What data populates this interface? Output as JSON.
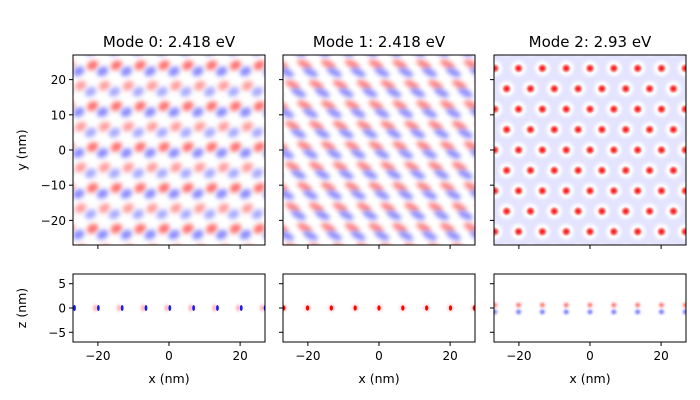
{
  "figure": {
    "ylabel_top": "y (nm)",
    "ylabel_bottom": "z (nm)",
    "xlabel": "x (nm)"
  },
  "chart_data": [
    {
      "type": "heatmap",
      "title": "Mode 0: 2.418 eV",
      "xlabel": "",
      "ylabel": "y (nm)",
      "xlim": [
        -27,
        27
      ],
      "ylim": [
        -27,
        27
      ],
      "xticks": [
        -20,
        0,
        20
      ],
      "yticks": [
        -20,
        -10,
        0,
        10,
        20
      ],
      "colormap": "bwr",
      "pattern": "dipole lobes, red/blue alternating on triangular lattice"
    },
    {
      "type": "heatmap",
      "title": "Mode 1: 2.418 eV",
      "xlabel": "",
      "ylabel": "",
      "xlim": [
        -27,
        27
      ],
      "ylim": [
        -27,
        27
      ],
      "xticks": [
        -20,
        0,
        20
      ],
      "yticks": [
        -20,
        -10,
        0,
        10,
        20
      ],
      "colormap": "bwr",
      "pattern": "diagonal red/blue stripes on triangular lattice"
    },
    {
      "type": "heatmap",
      "title": "Mode 2: 2.93 eV",
      "xlabel": "",
      "ylabel": "",
      "xlim": [
        -27,
        27
      ],
      "ylim": [
        -27,
        27
      ],
      "xticks": [
        -20,
        0,
        20
      ],
      "yticks": [
        -20,
        -10,
        0,
        10,
        20
      ],
      "colormap": "bwr",
      "pattern": "red spots on light blue background, triangular lattice"
    },
    {
      "type": "heatmap",
      "title": "",
      "xlabel": "x (nm)",
      "ylabel": "z (nm)",
      "xlim": [
        -27,
        27
      ],
      "ylim": [
        -7,
        7
      ],
      "xticks": [
        -20,
        0,
        20
      ],
      "yticks": [
        -5,
        0,
        5
      ],
      "colormap": "bwr",
      "pattern": "dipole dots along z=0"
    },
    {
      "type": "heatmap",
      "title": "",
      "xlabel": "x (nm)",
      "ylabel": "",
      "xlim": [
        -27,
        27
      ],
      "ylim": [
        -7,
        7
      ],
      "xticks": [
        -20,
        0,
        20
      ],
      "yticks": [
        -5,
        0,
        5
      ],
      "colormap": "bwr",
      "pattern": "red dots along z=0"
    },
    {
      "type": "heatmap",
      "title": "",
      "xlabel": "x (nm)",
      "ylabel": "",
      "xlim": [
        -27,
        27
      ],
      "ylim": [
        -7,
        7
      ],
      "xticks": [
        -20,
        0,
        20
      ],
      "yticks": [
        -5,
        0,
        5
      ],
      "colormap": "bwr",
      "pattern": "red above, blue below z=0"
    }
  ]
}
